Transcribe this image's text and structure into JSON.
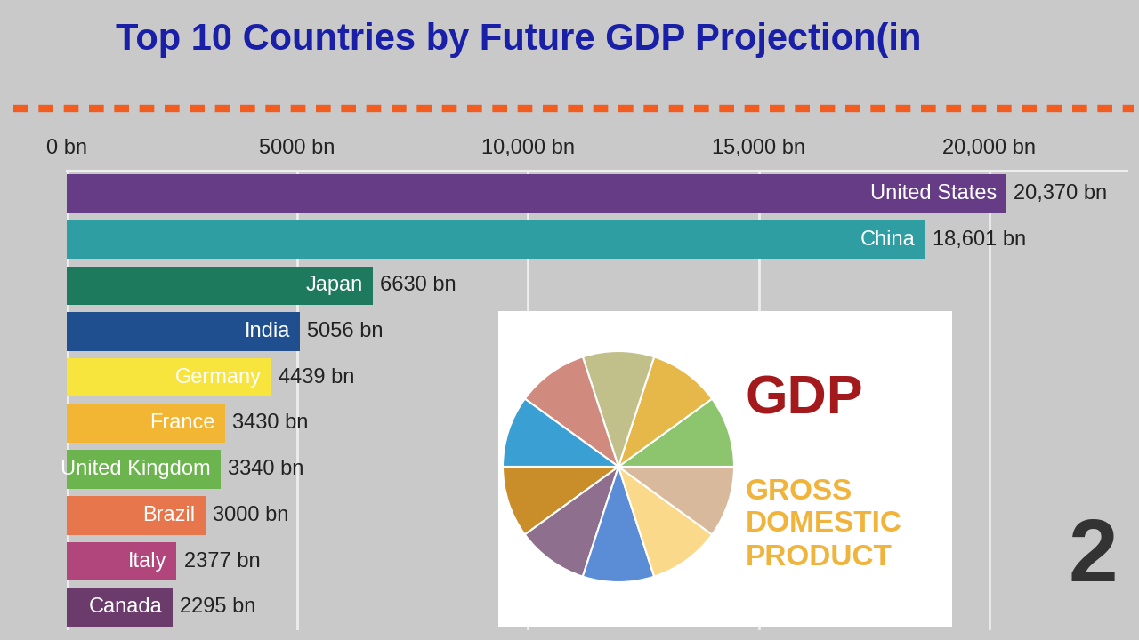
{
  "chart_data": {
    "type": "bar",
    "orientation": "horizontal",
    "title": "Top 10 Countries by Future GDP Projection(in",
    "categories": [
      "United States",
      "China",
      "Japan",
      "India",
      "Germany",
      "France",
      "United Kingdom",
      "Brazil",
      "Italy",
      "Canada"
    ],
    "values": [
      20370,
      18601,
      6630,
      5056,
      4439,
      3430,
      3340,
      3000,
      2377,
      2295
    ],
    "value_labels": [
      "20,370 bn",
      "18,601 bn",
      "6630 bn",
      "5056 bn",
      "4439 bn",
      "3430 bn",
      "3340 bn",
      "3000 bn",
      "2377 bn",
      "2295 bn"
    ],
    "colors": [
      "#653c85",
      "#2e9ea3",
      "#1e7a5c",
      "#1f4f8f",
      "#f7e43c",
      "#f2b534",
      "#6cb54e",
      "#e8764c",
      "#b0467c",
      "#6a3b6b"
    ],
    "xlim": [
      0,
      23000
    ],
    "xticks": [
      {
        "value": 0,
        "label": "0 bn"
      },
      {
        "value": 5000,
        "label": "5000 bn"
      },
      {
        "value": 10000,
        "label": "10,000 bn"
      },
      {
        "value": 15000,
        "label": "15,000 bn"
      },
      {
        "value": 20000,
        "label": "20,000 bn"
      }
    ],
    "grid": true,
    "data_labels": true,
    "tick_labels": "x",
    "annotations": [
      "GDP",
      "GROSS DOMESTIC PRODUCT",
      "2"
    ]
  }
}
